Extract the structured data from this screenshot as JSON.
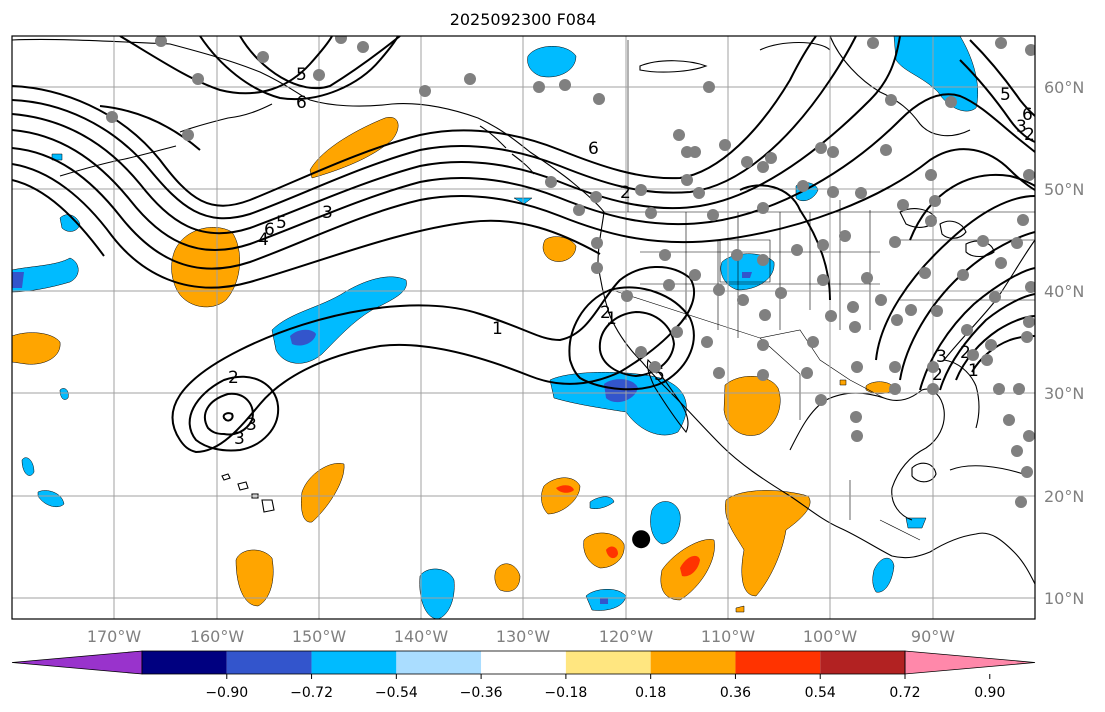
{
  "title": "2025092300 F084",
  "map": {
    "lon_range": [
      -180,
      -80
    ],
    "lat_range": [
      8,
      65
    ],
    "longitude_labels": [
      "170°W",
      "160°W",
      "150°W",
      "140°W",
      "130°W",
      "120°W",
      "110°W",
      "100°W",
      "90°W"
    ],
    "latitude_labels": [
      "60°N",
      "50°N",
      "40°N",
      "30°N",
      "20°N",
      "10°N"
    ],
    "gridlines": true,
    "colors": {
      "gridline": "#a0a0a0",
      "axis_label": "#808080",
      "contour": "#000000",
      "station_dot": "#808080",
      "marker": "#000000"
    }
  },
  "contour_labels": [
    "6",
    "5",
    "4",
    "3",
    "2",
    "1",
    "6",
    "5",
    "2",
    "1",
    "2",
    "3",
    "6",
    "2",
    "3",
    "5",
    "6",
    "3",
    "2",
    "1",
    "2",
    "3",
    "5"
  ],
  "colorbar": {
    "tick_labels": [
      "−0.90",
      "−0.72",
      "−0.54",
      "−0.36",
      "−0.18",
      "0.18",
      "0.36",
      "0.54",
      "0.72",
      "0.90"
    ],
    "colors": [
      "#9933cc",
      "#000080",
      "#3355cc",
      "#00bbff",
      "#aaddff",
      "#ffffff",
      "#ffe680",
      "#ffa500",
      "#ff3300",
      "#b22222",
      "#ff88aa"
    ]
  },
  "marker": {
    "name": "black-dot",
    "lon": -118.5,
    "lat": 15.8
  }
}
